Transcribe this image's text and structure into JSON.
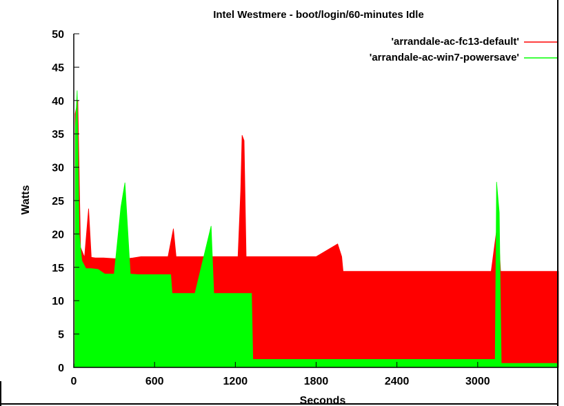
{
  "chart_data": {
    "type": "area",
    "title": "Intel Westmere - boot/login/60-minutes Idle",
    "xlabel": "Seconds",
    "ylabel": "Watts",
    "xlim": [
      0,
      3600
    ],
    "ylim": [
      0,
      50
    ],
    "x_ticks": [
      "0",
      "600",
      "1200",
      "1800",
      "2400",
      "3000"
    ],
    "y_ticks": [
      "0",
      "5",
      "10",
      "15",
      "20",
      "25",
      "30",
      "35",
      "40",
      "45",
      "50"
    ],
    "grid": false,
    "legend_position": "top-right",
    "series": [
      {
        "name": "'arrandale-ac-fc13-default'",
        "color": "#ff0000",
        "points": [
          [
            0,
            0.5
          ],
          [
            8,
            0.5
          ],
          [
            10,
            38
          ],
          [
            30,
            40
          ],
          [
            50,
            18
          ],
          [
            80,
            16.5
          ],
          [
            110,
            23.8
          ],
          [
            130,
            16.5
          ],
          [
            160,
            16.4
          ],
          [
            220,
            16.4
          ],
          [
            300,
            16.3
          ],
          [
            400,
            16.3
          ],
          [
            440,
            16.4
          ],
          [
            500,
            16.6
          ],
          [
            600,
            16.6
          ],
          [
            700,
            16.6
          ],
          [
            740,
            20.8
          ],
          [
            760,
            16.6
          ],
          [
            900,
            16.6
          ],
          [
            1100,
            16.6
          ],
          [
            1220,
            16.6
          ],
          [
            1240,
            26.5
          ],
          [
            1250,
            34.8
          ],
          [
            1265,
            34
          ],
          [
            1280,
            16.6
          ],
          [
            1400,
            16.6
          ],
          [
            1600,
            16.6
          ],
          [
            1800,
            16.6
          ],
          [
            1960,
            18.5
          ],
          [
            1990,
            16.6
          ],
          [
            2000,
            14.4
          ],
          [
            2200,
            14.4
          ],
          [
            2500,
            14.4
          ],
          [
            2800,
            14.4
          ],
          [
            3100,
            14.4
          ],
          [
            3150,
            22
          ],
          [
            3170,
            14.4
          ],
          [
            3300,
            14.4
          ],
          [
            3500,
            14.4
          ],
          [
            3600,
            14.4
          ]
        ]
      },
      {
        "name": "'arrandale-ac-win7-powersave'",
        "color": "#00ff00",
        "points": [
          [
            0,
            0.5
          ],
          [
            8,
            0.5
          ],
          [
            12,
            36
          ],
          [
            25,
            41.5
          ],
          [
            40,
            20
          ],
          [
            60,
            16
          ],
          [
            90,
            14.8
          ],
          [
            130,
            14.8
          ],
          [
            180,
            14.7
          ],
          [
            230,
            14
          ],
          [
            300,
            14
          ],
          [
            350,
            24
          ],
          [
            380,
            27.7
          ],
          [
            420,
            14
          ],
          [
            480,
            13.9
          ],
          [
            600,
            13.9
          ],
          [
            720,
            13.9
          ],
          [
            730,
            11.1
          ],
          [
            900,
            11.1
          ],
          [
            1020,
            21.2
          ],
          [
            1040,
            11.1
          ],
          [
            1200,
            11.1
          ],
          [
            1320,
            11.1
          ],
          [
            1330,
            1.2
          ],
          [
            1600,
            1.2
          ],
          [
            2000,
            1.2
          ],
          [
            2500,
            1.2
          ],
          [
            3000,
            1.2
          ],
          [
            3130,
            1.2
          ],
          [
            3140,
            27.8
          ],
          [
            3160,
            23.2
          ],
          [
            3175,
            0.6
          ],
          [
            3400,
            0.6
          ],
          [
            3600,
            0.6
          ]
        ]
      }
    ]
  }
}
